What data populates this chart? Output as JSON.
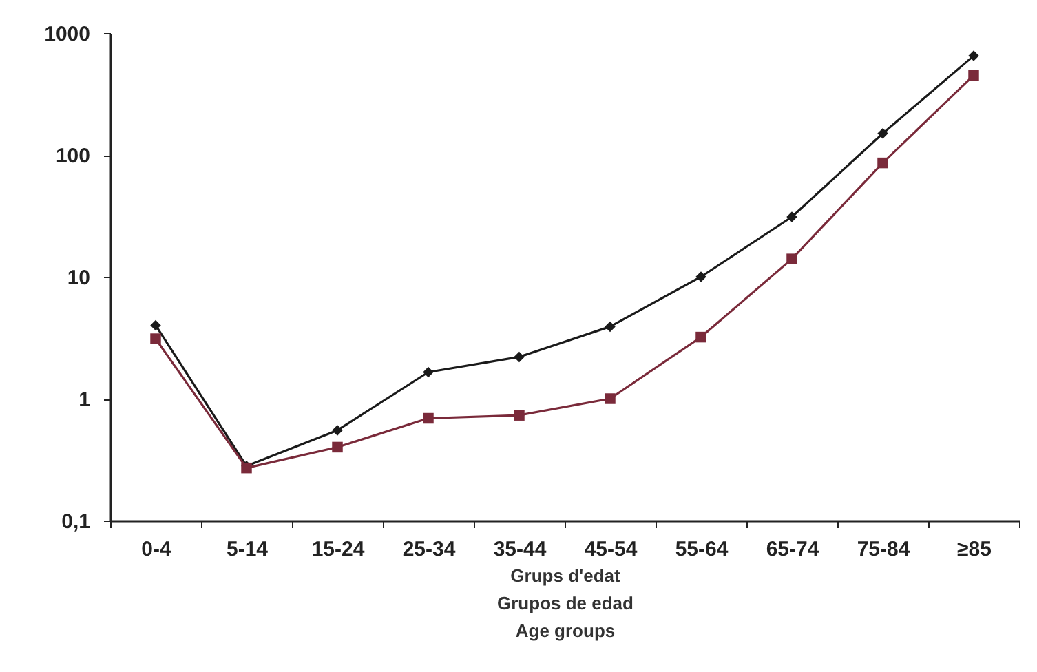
{
  "chart_data": {
    "type": "line",
    "categories": [
      "0-4",
      "5-14",
      "15-24",
      "25-34",
      "35-44",
      "45-54",
      "55-64",
      "65-74",
      "75-84",
      "≥85"
    ],
    "xlabel": "Grups d'edat\nGrupos de edad\nAge groups",
    "log": "y",
    "ylim": [
      0.1,
      1000
    ],
    "yticks": [
      {
        "value": 0.1,
        "label": "0,1"
      },
      1,
      10,
      100,
      1000
    ],
    "grid": false,
    "series": [
      {
        "color": "#1a1a1a",
        "marker": "diamond",
        "line_style": "solid",
        "values": [
          4.0,
          0.28,
          0.55,
          1.65,
          2.2,
          3.9,
          10,
          31,
          150,
          650
        ]
      },
      {
        "color": "#7a2a3a",
        "marker": "square",
        "line_style": "solid",
        "values": [
          3.1,
          0.27,
          0.4,
          0.69,
          0.73,
          1.0,
          3.2,
          14,
          86,
          450
        ]
      }
    ]
  }
}
